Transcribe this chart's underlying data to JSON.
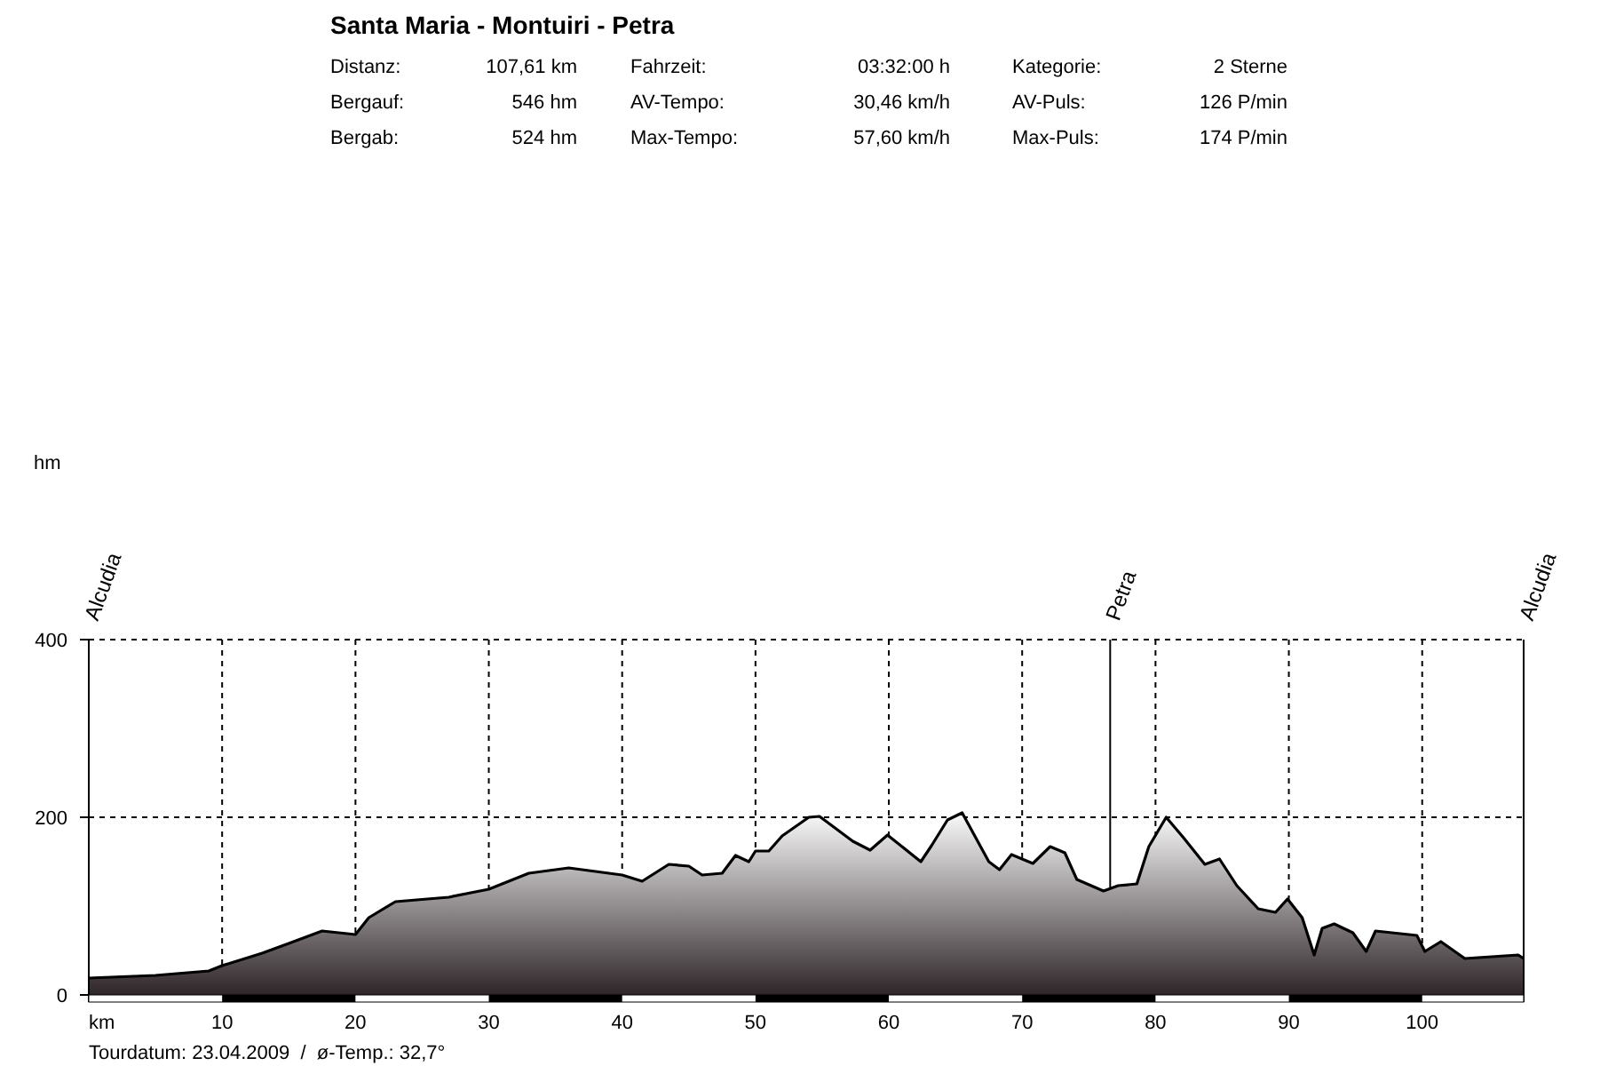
{
  "chart_data": {
    "type": "area",
    "title": "Santa Maria - Montuiri - Petra",
    "annotations": [
      "Distanz:",
      "107,61 km",
      "Fahrzeit:",
      "03:32:00 h",
      "Kategorie:",
      "2 Sterne",
      "Bergauf:",
      "546 hm",
      "AV-Tempo:",
      "30,46 km/h",
      "AV-Puls:",
      "126 P/min",
      "Bergab:",
      "524 hm",
      "Max-Tempo:",
      "57,60 km/h",
      "Max-Puls:",
      "174 P/min",
      "Tourdatum: 23.04.2009  /  ø-Temp.: 32,7°",
      "hm",
      "Alcudia",
      "Alcudia"
    ],
    "xlabel": "km",
    "x": [
      0,
      5,
      9,
      10,
      13,
      15,
      17.5,
      20,
      21,
      23,
      27,
      30,
      33,
      36,
      40,
      41.5,
      43.5,
      45,
      46,
      47.5,
      48.5,
      49.5,
      50,
      51,
      52,
      54,
      54.8,
      57.3,
      58.6,
      59.9,
      62.4,
      63.2,
      64.4,
      65.5,
      67.5,
      68.3,
      69.2,
      70.8,
      72.1,
      73.2,
      74.1,
      76.1,
      77.2,
      78.6,
      79.5,
      80.8,
      82.1,
      83.7,
      84.8,
      86.1,
      87.7,
      89,
      89.9,
      91,
      91.9,
      92.5,
      93.4,
      94.8,
      95.8,
      96.5,
      99.6,
      100.2,
      101.4,
      103.2,
      107.2,
      107.61
    ],
    "series": [
      {
        "color": "#000000",
        "values": [
          19,
          22,
          27,
          33,
          47,
          58,
          72,
          68,
          87,
          105,
          110,
          119,
          137,
          143,
          135,
          128,
          147,
          145,
          135,
          137,
          157,
          150,
          162,
          162,
          179,
          200,
          201,
          173,
          163,
          180,
          150,
          168,
          197,
          205,
          150,
          141,
          158,
          148,
          167,
          160,
          130,
          117,
          123,
          125,
          167,
          200,
          177,
          147,
          153,
          123,
          97,
          93,
          108,
          87,
          45,
          75,
          80,
          70,
          49,
          72,
          67,
          49,
          60,
          41,
          45,
          41
        ]
      }
    ],
    "xlim": [
      0,
      107.61
    ],
    "xticks": [
      10,
      20,
      30,
      40,
      50,
      60,
      70,
      80,
      90,
      100
    ],
    "ylim": [
      0,
      400
    ],
    "yticks": [
      0,
      200,
      400
    ],
    "grid": true,
    "ref_lines": [
      {
        "axis": "x",
        "value": 76.6,
        "label": "Petra"
      }
    ]
  }
}
